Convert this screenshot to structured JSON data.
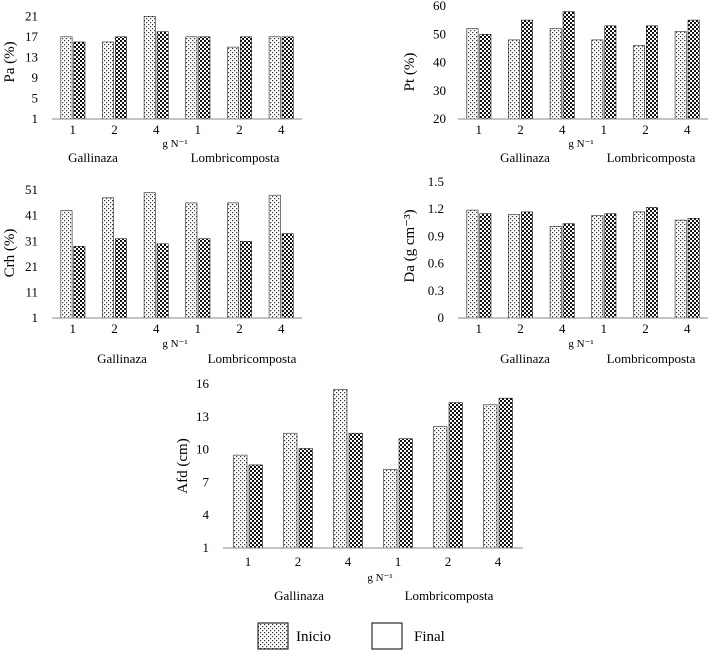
{
  "legend": {
    "inicio": "Inicio",
    "final": "Final"
  },
  "chart_data": [
    {
      "type": "bar",
      "ylabel": "Pa (%)",
      "xlabel": "g N⁻¹",
      "categories": [
        "1",
        "2",
        "4",
        "1",
        "2",
        "4"
      ],
      "groups": [
        "Gallinaza",
        "Lombricomposta"
      ],
      "yticks": [
        1,
        5,
        9,
        13,
        17,
        21
      ],
      "ylim": [
        1,
        23
      ],
      "series": [
        {
          "name": "Inicio",
          "values": [
            17,
            16,
            21,
            17,
            15,
            17
          ]
        },
        {
          "name": "Final",
          "values": [
            16,
            17,
            18,
            17,
            17,
            17
          ]
        }
      ]
    },
    {
      "type": "bar",
      "ylabel": "Pt (%)",
      "xlabel": "g N⁻¹",
      "categories": [
        "1",
        "2",
        "4",
        "1",
        "2",
        "4"
      ],
      "groups": [
        "Gallinaza",
        "Lombricomposta"
      ],
      "yticks": [
        20,
        30,
        40,
        50,
        60
      ],
      "ylim": [
        20,
        60
      ],
      "series": [
        {
          "name": "Inicio",
          "values": [
            52,
            48,
            52,
            48,
            46,
            51
          ]
        },
        {
          "name": "Final",
          "values": [
            50,
            55,
            58,
            53,
            53,
            55
          ]
        }
      ]
    },
    {
      "type": "bar",
      "ylabel": "Crh (%)",
      "xlabel": "g N⁻¹",
      "categories": [
        "1",
        "2",
        "4",
        "1",
        "2",
        "4"
      ],
      "groups": [
        "Gallinaza",
        "Lombricomposta"
      ],
      "yticks": [
        1,
        11,
        21,
        31,
        41,
        51
      ],
      "ylim": [
        1,
        53
      ],
      "series": [
        {
          "name": "Inicio",
          "values": [
            43,
            48,
            50,
            46,
            46,
            49
          ]
        },
        {
          "name": "Final",
          "values": [
            29,
            32,
            30,
            32,
            31,
            34
          ]
        }
      ]
    },
    {
      "type": "bar",
      "ylabel": "Da (g cm⁻³)",
      "xlabel": "g N⁻¹",
      "categories": [
        "1",
        "2",
        "4",
        "1",
        "2",
        "4"
      ],
      "groups": [
        "Gallinaza",
        "Lombricomposta"
      ],
      "yticks": [
        "0",
        "0.3",
        "0.6",
        "0.9",
        "1.2",
        "1.5"
      ],
      "ylim": [
        0,
        1.5
      ],
      "series": [
        {
          "name": "Inicio",
          "values": [
            1.19,
            1.14,
            1.01,
            1.13,
            1.17,
            1.08
          ]
        },
        {
          "name": "Final",
          "values": [
            1.15,
            1.17,
            1.04,
            1.15,
            1.22,
            1.1
          ]
        }
      ]
    },
    {
      "type": "bar",
      "ylabel": "Afd (cm)",
      "xlabel": "g N⁻¹",
      "categories": [
        "1",
        "2",
        "4",
        "1",
        "2",
        "4"
      ],
      "groups": [
        "Gallinaza",
        "Lombricomposta"
      ],
      "yticks": [
        1,
        4,
        7,
        10,
        13,
        16
      ],
      "ylim": [
        1,
        16
      ],
      "series": [
        {
          "name": "Inicio",
          "values": [
            9.5,
            11.5,
            15.5,
            8.2,
            12.1,
            14.1
          ]
        },
        {
          "name": "Final",
          "values": [
            8.6,
            10.1,
            11.5,
            11.0,
            14.3,
            14.7
          ]
        }
      ]
    }
  ]
}
